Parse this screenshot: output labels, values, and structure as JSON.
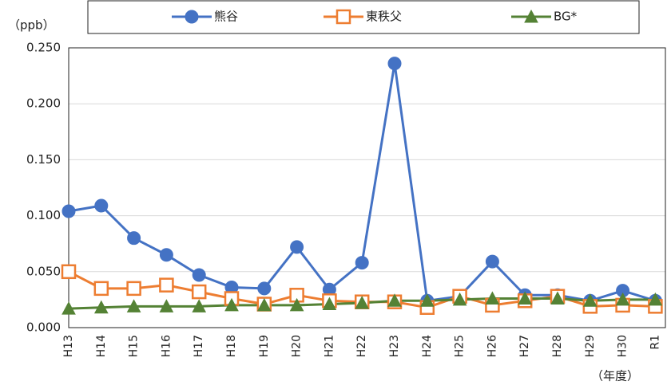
{
  "chart_data": {
    "type": "line",
    "y_unit_label": "（ppb）",
    "x_unit_label": "（年度）",
    "categories": [
      "H13",
      "H14",
      "H15",
      "H16",
      "H17",
      "H18",
      "H19",
      "H20",
      "H21",
      "H22",
      "H23",
      "H24",
      "H25",
      "H26",
      "H27",
      "H28",
      "H29",
      "H30",
      "R1"
    ],
    "series": [
      {
        "name": "熊谷",
        "color": "#4472c4",
        "marker": "circle",
        "values": [
          0.104,
          0.109,
          0.08,
          0.065,
          0.047,
          0.036,
          0.035,
          0.072,
          0.034,
          0.058,
          0.236,
          0.024,
          0.028,
          0.059,
          0.029,
          0.029,
          0.024,
          0.033,
          0.024
        ]
      },
      {
        "name": "東秩父",
        "color": "#ed7d31",
        "marker": "square",
        "values": [
          0.05,
          0.035,
          0.035,
          0.038,
          0.032,
          0.026,
          0.021,
          0.029,
          0.024,
          0.023,
          0.023,
          0.018,
          0.028,
          0.02,
          0.024,
          0.028,
          0.019,
          0.02,
          0.019
        ]
      },
      {
        "name": "BG*",
        "color": "#548235",
        "marker": "triangle",
        "values": [
          0.017,
          0.018,
          0.019,
          0.019,
          0.019,
          0.02,
          0.02,
          0.02,
          0.021,
          0.022,
          0.024,
          0.024,
          0.025,
          0.026,
          0.026,
          0.026,
          0.024,
          0.025,
          0.025
        ]
      }
    ],
    "ylim": [
      0,
      0.25
    ],
    "yticks": [
      {
        "value": 0,
        "label": "0.000"
      },
      {
        "value": 0.05,
        "label": "0.050"
      },
      {
        "value": 0.1,
        "label": "0.100"
      },
      {
        "value": 0.15,
        "label": "0.150"
      },
      {
        "value": 0.2,
        "label": "0.200"
      },
      {
        "value": 0.25,
        "label": "0.250"
      }
    ],
    "grid": true,
    "legend": "top"
  }
}
